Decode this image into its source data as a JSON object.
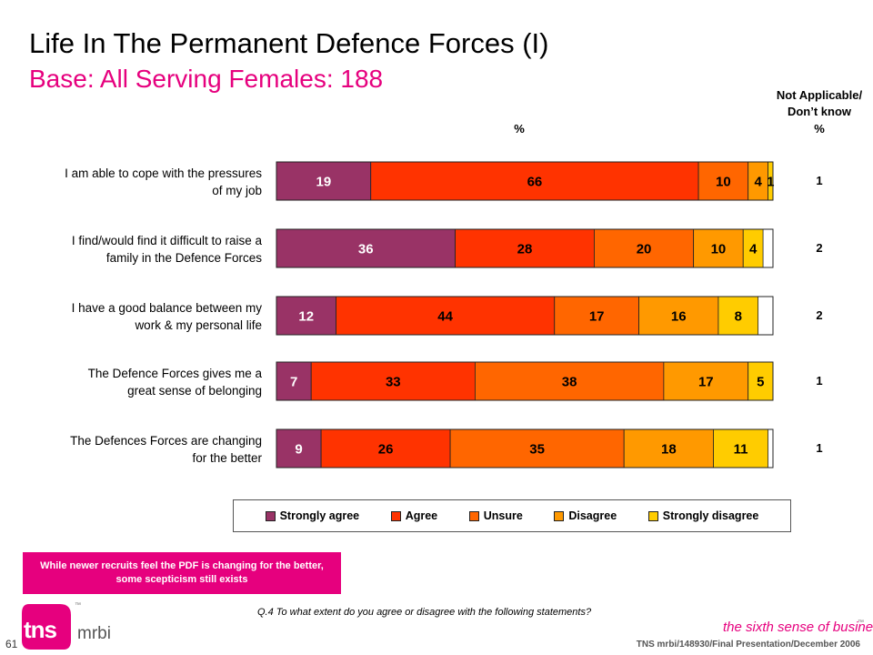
{
  "title": "Life In The Permanent Defence Forces (I)",
  "subtitle": "Base:  All Serving Females:  188",
  "na_header": {
    "line1": "Not Applicable/",
    "line2": "Don’t know",
    "pct": "%"
  },
  "pct_header": "%",
  "chart_data": {
    "type": "bar",
    "orientation": "horizontal",
    "stacked": true,
    "xlim": [
      0,
      100
    ],
    "categories": [
      "I am able to cope with the pressures of my job",
      "I find/would find it difficult to raise a family in the Defence Forces",
      "I have a good balance between my work & my personal life",
      "The Defence Forces gives me a great sense of belonging",
      "The Defences Forces are changing for the better"
    ],
    "category_lines": [
      [
        "I am able to cope with the pressures",
        "of my job"
      ],
      [
        "I find/would find it difficult to raise a",
        "family in the Defence Forces"
      ],
      [
        "I have a good balance between my",
        "work & my personal life"
      ],
      [
        "The Defence Forces gives me a",
        "great sense of belonging"
      ],
      [
        "The Defences Forces are changing",
        "for the better"
      ]
    ],
    "series": [
      {
        "name": "Strongly agree",
        "color": "#993366",
        "values": [
          19,
          36,
          12,
          7,
          9
        ]
      },
      {
        "name": "Agree",
        "color": "#ff3300",
        "values": [
          66,
          28,
          44,
          33,
          26
        ]
      },
      {
        "name": "Unsure",
        "color": "#ff6600",
        "values": [
          10,
          20,
          17,
          38,
          35
        ]
      },
      {
        "name": "Disagree",
        "color": "#ff9900",
        "values": [
          4,
          10,
          16,
          17,
          18
        ]
      },
      {
        "name": "Strongly disagree",
        "color": "#ffcc00",
        "values": [
          1,
          4,
          8,
          5,
          11
        ]
      }
    ],
    "not_applicable_dont_know": [
      1,
      2,
      2,
      1,
      1
    ],
    "legend_position": "bottom"
  },
  "callout": "While newer recruits feel the PDF is changing for the better, some scepticism still exists",
  "question": "Q.4  To what extent do you agree or disagree with the following statements?",
  "logo": {
    "tns": "tns",
    "mrbi": "mrbi",
    "tm": "™"
  },
  "page_number": "61",
  "tagline": "the sixth sense of business",
  "footer": "TNS mrbi/148930/Final Presentation/December 2006"
}
